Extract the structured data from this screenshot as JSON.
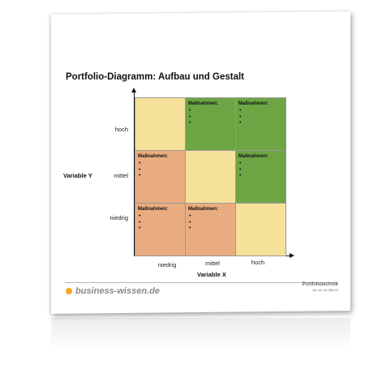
{
  "title": "Portfolio-Diagramm: Aufbau und Gestalt",
  "y_axis": {
    "title": "Variable Y",
    "ticks": [
      "hoch",
      "mittel",
      "niedrig"
    ]
  },
  "x_axis": {
    "title": "Variable X",
    "ticks": [
      "niedrig",
      "mittel",
      "hoch"
    ]
  },
  "colors": {
    "yellow": "#f6e19a",
    "orange": "#e8ac80",
    "green": "#6da544",
    "brand_dot": "#f5a623"
  },
  "grid": {
    "rows": [
      [
        {
          "color": "yellow",
          "label": ""
        },
        {
          "color": "green",
          "label": "Maßnahmen:",
          "bullets": [
            "•",
            "•",
            "•"
          ]
        },
        {
          "color": "green",
          "label": "Maßnahmen:",
          "bullets": [
            "•",
            "•",
            "•"
          ]
        }
      ],
      [
        {
          "color": "orange",
          "label": "Maßnahmen:",
          "bullets": [
            "•",
            "•",
            "•"
          ]
        },
        {
          "color": "yellow",
          "label": ""
        },
        {
          "color": "green",
          "label": "Maßnahmen:",
          "bullets": [
            "•",
            "•",
            "•"
          ]
        }
      ],
      [
        {
          "color": "orange",
          "label": "Maßnahmen:",
          "bullets": [
            "•",
            "•",
            "•"
          ]
        },
        {
          "color": "orange",
          "label": "Maßnahmen:",
          "bullets": [
            "•",
            "•",
            "•"
          ]
        },
        {
          "color": "yellow",
          "label": ""
        }
      ]
    ]
  },
  "footer": {
    "brand": "business-wissen.de",
    "category": "Portfoliotechnik",
    "article": "Art.-Nr. 30-058.02"
  }
}
